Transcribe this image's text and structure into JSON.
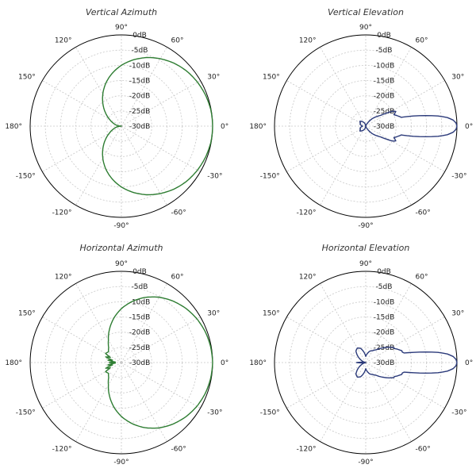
{
  "chart_data": [
    {
      "type": "polar",
      "title": "Vertical Azimuth",
      "color": "#2e7d32",
      "r_range_db": [
        -30,
        0
      ],
      "ring_labels": [
        "0dB",
        "-5dB",
        "-10dB",
        "-15dB",
        "-20dB",
        "-25dB",
        "-30dB"
      ],
      "angle_labels": [
        "0°",
        "30°",
        "60°",
        "90°",
        "120°",
        "150°",
        "180°",
        "-150°",
        "-120°",
        "-90°",
        "-60°",
        "-30°"
      ],
      "angles_deg": [
        0,
        10,
        20,
        30,
        40,
        50,
        60,
        70,
        80,
        90,
        100,
        110,
        120,
        130,
        140,
        150,
        160,
        170,
        180
      ],
      "gain_db": [
        0,
        -0.1,
        -0.5,
        -1.1,
        -1.9,
        -3,
        -4.4,
        -6,
        -7.9,
        -10,
        -12.4,
        -15,
        -17.8,
        -20.6,
        -23.2,
        -25.5,
        -27.2,
        -28.5,
        -30
      ],
      "symmetric": true
    },
    {
      "type": "polar",
      "title": "Vertical Elevation",
      "color": "#2b3a7a",
      "r_range_db": [
        -30,
        0
      ],
      "ring_labels": [
        "0dB",
        "-5dB",
        "-10dB",
        "-15dB",
        "-20dB",
        "-25dB",
        "-30dB"
      ],
      "angle_labels": [
        "0°",
        "30°",
        "60°",
        "90°",
        "120°",
        "150°",
        "180°",
        "-150°",
        "-120°",
        "-90°",
        "-60°",
        "-30°"
      ],
      "angles_deg": [
        0,
        2,
        4,
        6,
        8,
        10,
        12,
        14,
        16,
        18,
        20,
        22,
        24,
        26,
        28,
        30,
        32,
        36,
        40,
        45,
        50,
        55,
        60,
        70,
        80,
        90,
        100,
        110,
        120,
        130,
        140,
        150,
        160,
        170,
        180
      ],
      "gain_db": [
        0,
        -0.3,
        -1.2,
        -3,
        -6,
        -10,
        -14,
        -18,
        -18.5,
        -19,
        -19.5,
        -20,
        -19.5,
        -19,
        -19.5,
        -20.5,
        -22,
        -24,
        -25,
        -26,
        -27,
        -28,
        -29,
        -29.5,
        -30,
        -30,
        -30,
        -29,
        -28.5,
        -28,
        -27.5,
        -28,
        -28,
        -28.5,
        -29
      ],
      "symmetric": true
    },
    {
      "type": "polar",
      "title": "Horizontal Azimuth",
      "color": "#2e7d32",
      "r_range_db": [
        -30,
        0
      ],
      "ring_labels": [
        "0dB",
        "-5dB",
        "-10dB",
        "-15dB",
        "-20dB",
        "-25dB",
        "-30dB"
      ],
      "angle_labels": [
        "0°",
        "30°",
        "60°",
        "90°",
        "120°",
        "150°",
        "180°",
        "-150°",
        "-120°",
        "-90°",
        "-60°",
        "-30°"
      ],
      "angles_deg": [
        0,
        10,
        20,
        30,
        40,
        50,
        60,
        70,
        80,
        90,
        100,
        110,
        120,
        130,
        140,
        150,
        155,
        160,
        165,
        170,
        175,
        180
      ],
      "gain_db": [
        0,
        -0.2,
        -0.6,
        -1.3,
        -2.3,
        -3.6,
        -5.2,
        -7.2,
        -9.6,
        -12.3,
        -15.3,
        -18.5,
        -21.5,
        -23.5,
        -24.5,
        -24,
        -26,
        -24.5,
        -27,
        -25.5,
        -28,
        -26
      ],
      "symmetric": true
    },
    {
      "type": "polar",
      "title": "Horizontal Elevation",
      "color": "#2b3a7a",
      "r_range_db": [
        -30,
        0
      ],
      "ring_labels": [
        "0dB",
        "-5dB",
        "-10dB",
        "-15dB",
        "-20dB",
        "-25dB",
        "-30dB"
      ],
      "angle_labels": [
        "0°",
        "30°",
        "60°",
        "90°",
        "120°",
        "150°",
        "180°",
        "-150°",
        "-120°",
        "-90°",
        "-60°",
        "-30°"
      ],
      "angles_deg": [
        0,
        2,
        4,
        6,
        8,
        10,
        12,
        14,
        16,
        18,
        20,
        22,
        24,
        26,
        28,
        30,
        32,
        36,
        40,
        45,
        50,
        55,
        60,
        70,
        80,
        90,
        100,
        110,
        120,
        130,
        140,
        150,
        160,
        165,
        170,
        175,
        180
      ],
      "gain_db": [
        0,
        -0.3,
        -1.2,
        -3,
        -6,
        -10,
        -14,
        -17,
        -17.5,
        -17.5,
        -18,
        -18.5,
        -19,
        -19.5,
        -19.5,
        -20,
        -20.5,
        -21.5,
        -22.5,
        -23.5,
        -24.5,
        -25,
        -25.5,
        -26,
        -27,
        -28,
        -26.5,
        -25,
        -24.5,
        -25,
        -26.5,
        -28,
        -29,
        -30,
        -30,
        -29,
        -27
      ],
      "symmetric": true
    }
  ]
}
